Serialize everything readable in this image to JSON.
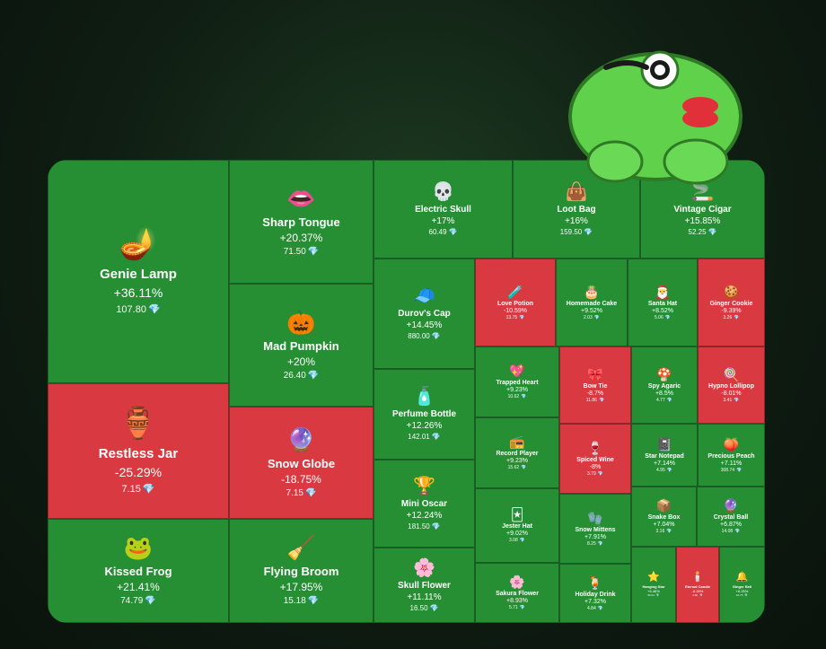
{
  "colors": {
    "up": "#268f34",
    "down": "#d93a41",
    "diamond": "#7fd3ff"
  },
  "diamond_icon": "💎",
  "chart_data": {
    "type": "treemap",
    "title": "",
    "items": [
      {
        "name": "Genie Lamp",
        "change": "+36.11%",
        "price": "107.80",
        "icon": "🪔",
        "direction": "up"
      },
      {
        "name": "Sharp Tongue",
        "change": "+20.37%",
        "price": "71.50",
        "icon": "👄",
        "direction": "up"
      },
      {
        "name": "Electric Skull",
        "change": "+17%",
        "price": "60.49",
        "icon": "💀",
        "direction": "up"
      },
      {
        "name": "Loot Bag",
        "change": "+16%",
        "price": "159.50",
        "icon": "👜",
        "direction": "up"
      },
      {
        "name": "Vintage Cigar",
        "change": "+15.85%",
        "price": "52.25",
        "icon": "🚬",
        "direction": "up"
      },
      {
        "name": "Mad Pumpkin",
        "change": "+20%",
        "price": "26.40",
        "icon": "🎃",
        "direction": "up"
      },
      {
        "name": "Durov's Cap",
        "change": "+14.45%",
        "price": "880.00",
        "icon": "🧢",
        "direction": "up"
      },
      {
        "name": "Love Potion",
        "change": "-10.59%",
        "price": "13.75",
        "icon": "🧪",
        "direction": "down"
      },
      {
        "name": "Homemade Cake",
        "change": "+9.52%",
        "price": "2.03",
        "icon": "🎂",
        "direction": "up"
      },
      {
        "name": "Santa Hat",
        "change": "+8.52%",
        "price": "5.06",
        "icon": "🎅",
        "direction": "up"
      },
      {
        "name": "Ginger Cookie",
        "change": "-9.39%",
        "price": "3.26",
        "icon": "🍪",
        "direction": "down"
      },
      {
        "name": "Trapped Heart",
        "change": "+9.23%",
        "price": "10.62",
        "icon": "💖",
        "direction": "up"
      },
      {
        "name": "Bow Tie",
        "change": "-8.7%",
        "price": "11.86",
        "icon": "🎀",
        "direction": "down"
      },
      {
        "name": "Spy Agaric",
        "change": "+8.5%",
        "price": "4.77",
        "icon": "🍄",
        "direction": "up"
      },
      {
        "name": "Hypno Lollipop",
        "change": "-8.01%",
        "price": "3.41",
        "icon": "🍭",
        "direction": "down"
      },
      {
        "name": "Restless Jar",
        "change": "-25.29%",
        "price": "7.15",
        "icon": "🏺",
        "direction": "down"
      },
      {
        "name": "Snow Globe",
        "change": "-18.75%",
        "price": "7.15",
        "icon": "🔮",
        "direction": "down"
      },
      {
        "name": "Perfume Bottle",
        "change": "+12.26%",
        "price": "142.01",
        "icon": "🧴",
        "direction": "up"
      },
      {
        "name": "Record Player",
        "change": "+9.23%",
        "price": "15.62",
        "icon": "📻",
        "direction": "up"
      },
      {
        "name": "Spiced Wine",
        "change": "-8%",
        "price": "3.79",
        "icon": "🍷",
        "direction": "down"
      },
      {
        "name": "Star Notepad",
        "change": "+7.14%",
        "price": "4.95",
        "icon": "📓",
        "direction": "up"
      },
      {
        "name": "Precious Peach",
        "change": "+7.11%",
        "price": "308.74",
        "icon": "🍑",
        "direction": "up"
      },
      {
        "name": "Mini Oscar",
        "change": "+12.24%",
        "price": "181.50",
        "icon": "🏆",
        "direction": "up"
      },
      {
        "name": "Jester Hat",
        "change": "+9.02%",
        "price": "3.08",
        "icon": "🃏",
        "direction": "up"
      },
      {
        "name": "Snow Mittens",
        "change": "+7.91%",
        "price": "8.25",
        "icon": "🧤",
        "direction": "up"
      },
      {
        "name": "Snake Box",
        "change": "+7.04%",
        "price": "3.16",
        "icon": "📦",
        "direction": "up"
      },
      {
        "name": "Crystal Ball",
        "change": "+6.87%",
        "price": "14.08",
        "icon": "🔮",
        "direction": "up"
      },
      {
        "name": "Kissed Frog",
        "change": "+21.41%",
        "price": "74.79",
        "icon": "🐸",
        "direction": "up"
      },
      {
        "name": "Flying Broom",
        "change": "+17.95%",
        "price": "15.18",
        "icon": "🧹",
        "direction": "up"
      },
      {
        "name": "Skull Flower",
        "change": "+11.11%",
        "price": "16.50",
        "icon": "🌸",
        "direction": "up"
      },
      {
        "name": "Sakura Flower",
        "change": "+8.93%",
        "price": "5.71",
        "icon": "🌸",
        "direction": "up"
      },
      {
        "name": "Holiday Drink",
        "change": "+7.32%",
        "price": "4.84",
        "icon": "🍹",
        "direction": "up"
      },
      {
        "name": "Hanging Star",
        "change": "+6.46%",
        "price": "50.04",
        "icon": "⭐",
        "direction": "up"
      },
      {
        "name": "Eternal Candle",
        "change": "-6.26%",
        "price": "4.60",
        "icon": "🕯️",
        "direction": "down"
      },
      {
        "name": "Ginger Bell",
        "change": "+6.25%",
        "price": "16.75",
        "icon": "🔔",
        "direction": "up"
      }
    ]
  }
}
